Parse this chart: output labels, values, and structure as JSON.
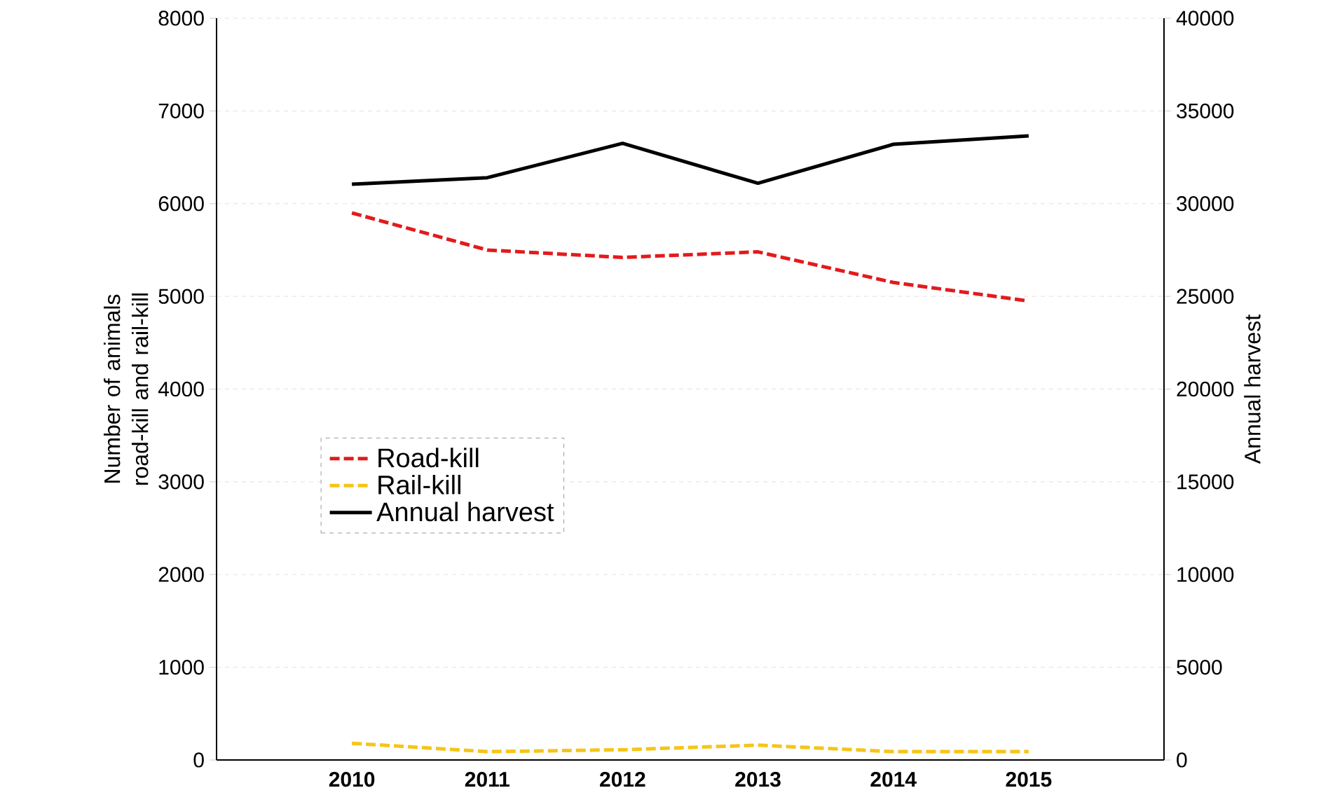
{
  "chart_data": {
    "type": "line",
    "x": [
      2010,
      2011,
      2012,
      2013,
      2014,
      2015
    ],
    "xlim": [
      2009,
      2016
    ],
    "xticks": [
      2010,
      2011,
      2012,
      2013,
      2014,
      2015
    ],
    "ylim": [
      0,
      8000
    ],
    "yticks": [
      0,
      1000,
      2000,
      3000,
      4000,
      5000,
      6000,
      7000,
      8000
    ],
    "y2lim": [
      0,
      40000
    ],
    "y2ticks": [
      0,
      5000,
      10000,
      15000,
      20000,
      25000,
      30000,
      35000,
      40000
    ],
    "ylabel": "Number of animals road-kill and rail-kill",
    "y2label": "Annual harvest",
    "grid": "y",
    "legend": "left",
    "series": [
      {
        "name": "Road-kill",
        "color": "#e31a1c",
        "line_style": "dashed",
        "values": [
          5900,
          5500,
          5420,
          5480,
          5150,
          4950
        ]
      },
      {
        "name": "Rail-kill",
        "color": "#f5c518",
        "line_style": "dashed",
        "values": [
          180,
          90,
          110,
          160,
          90,
          90
        ]
      },
      {
        "name": "Annual harvest",
        "color": "#000000",
        "line_style": "solid",
        "axis": "y2",
        "values": [
          31050,
          31400,
          33250,
          31100,
          33200,
          33650
        ]
      }
    ]
  }
}
